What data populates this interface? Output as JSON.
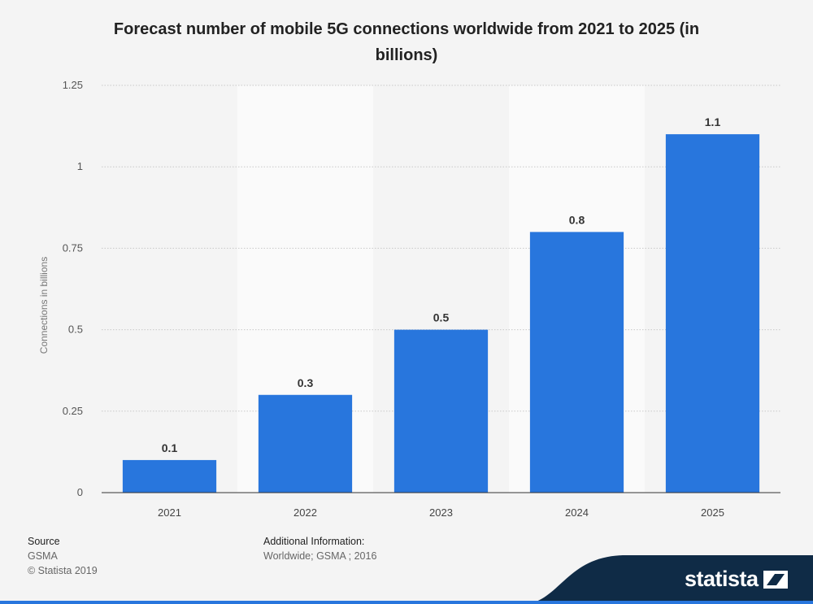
{
  "chart_data": {
    "type": "bar",
    "title": "Forecast number of mobile 5G connections worldwide from 2021 to 2025 (in billions)",
    "xlabel": "",
    "ylabel": "Connections in billions",
    "categories": [
      "2021",
      "2022",
      "2023",
      "2024",
      "2025"
    ],
    "values": [
      0.1,
      0.3,
      0.5,
      0.8,
      1.1
    ],
    "value_labels": [
      "0.1",
      "0.3",
      "0.5",
      "0.8",
      "1.1"
    ],
    "ylim": [
      0,
      1.25
    ],
    "yticks": [
      0,
      0.25,
      0.5,
      0.75,
      1,
      1.25
    ],
    "ytick_labels": [
      "0",
      "0.25",
      "0.5",
      "0.75",
      "1",
      "1.25"
    ],
    "grid": true,
    "bar_color": "#2876dd"
  },
  "footer": {
    "source_heading": "Source",
    "source_text": "GSMA",
    "copyright": "© Statista 2019",
    "info_heading": "Additional Information:",
    "info_text": "Worldwide; GSMA ; 2016",
    "brand": "statista"
  },
  "colors": {
    "brand_navy": "#0f2b46",
    "brand_blue": "#2876dd"
  }
}
